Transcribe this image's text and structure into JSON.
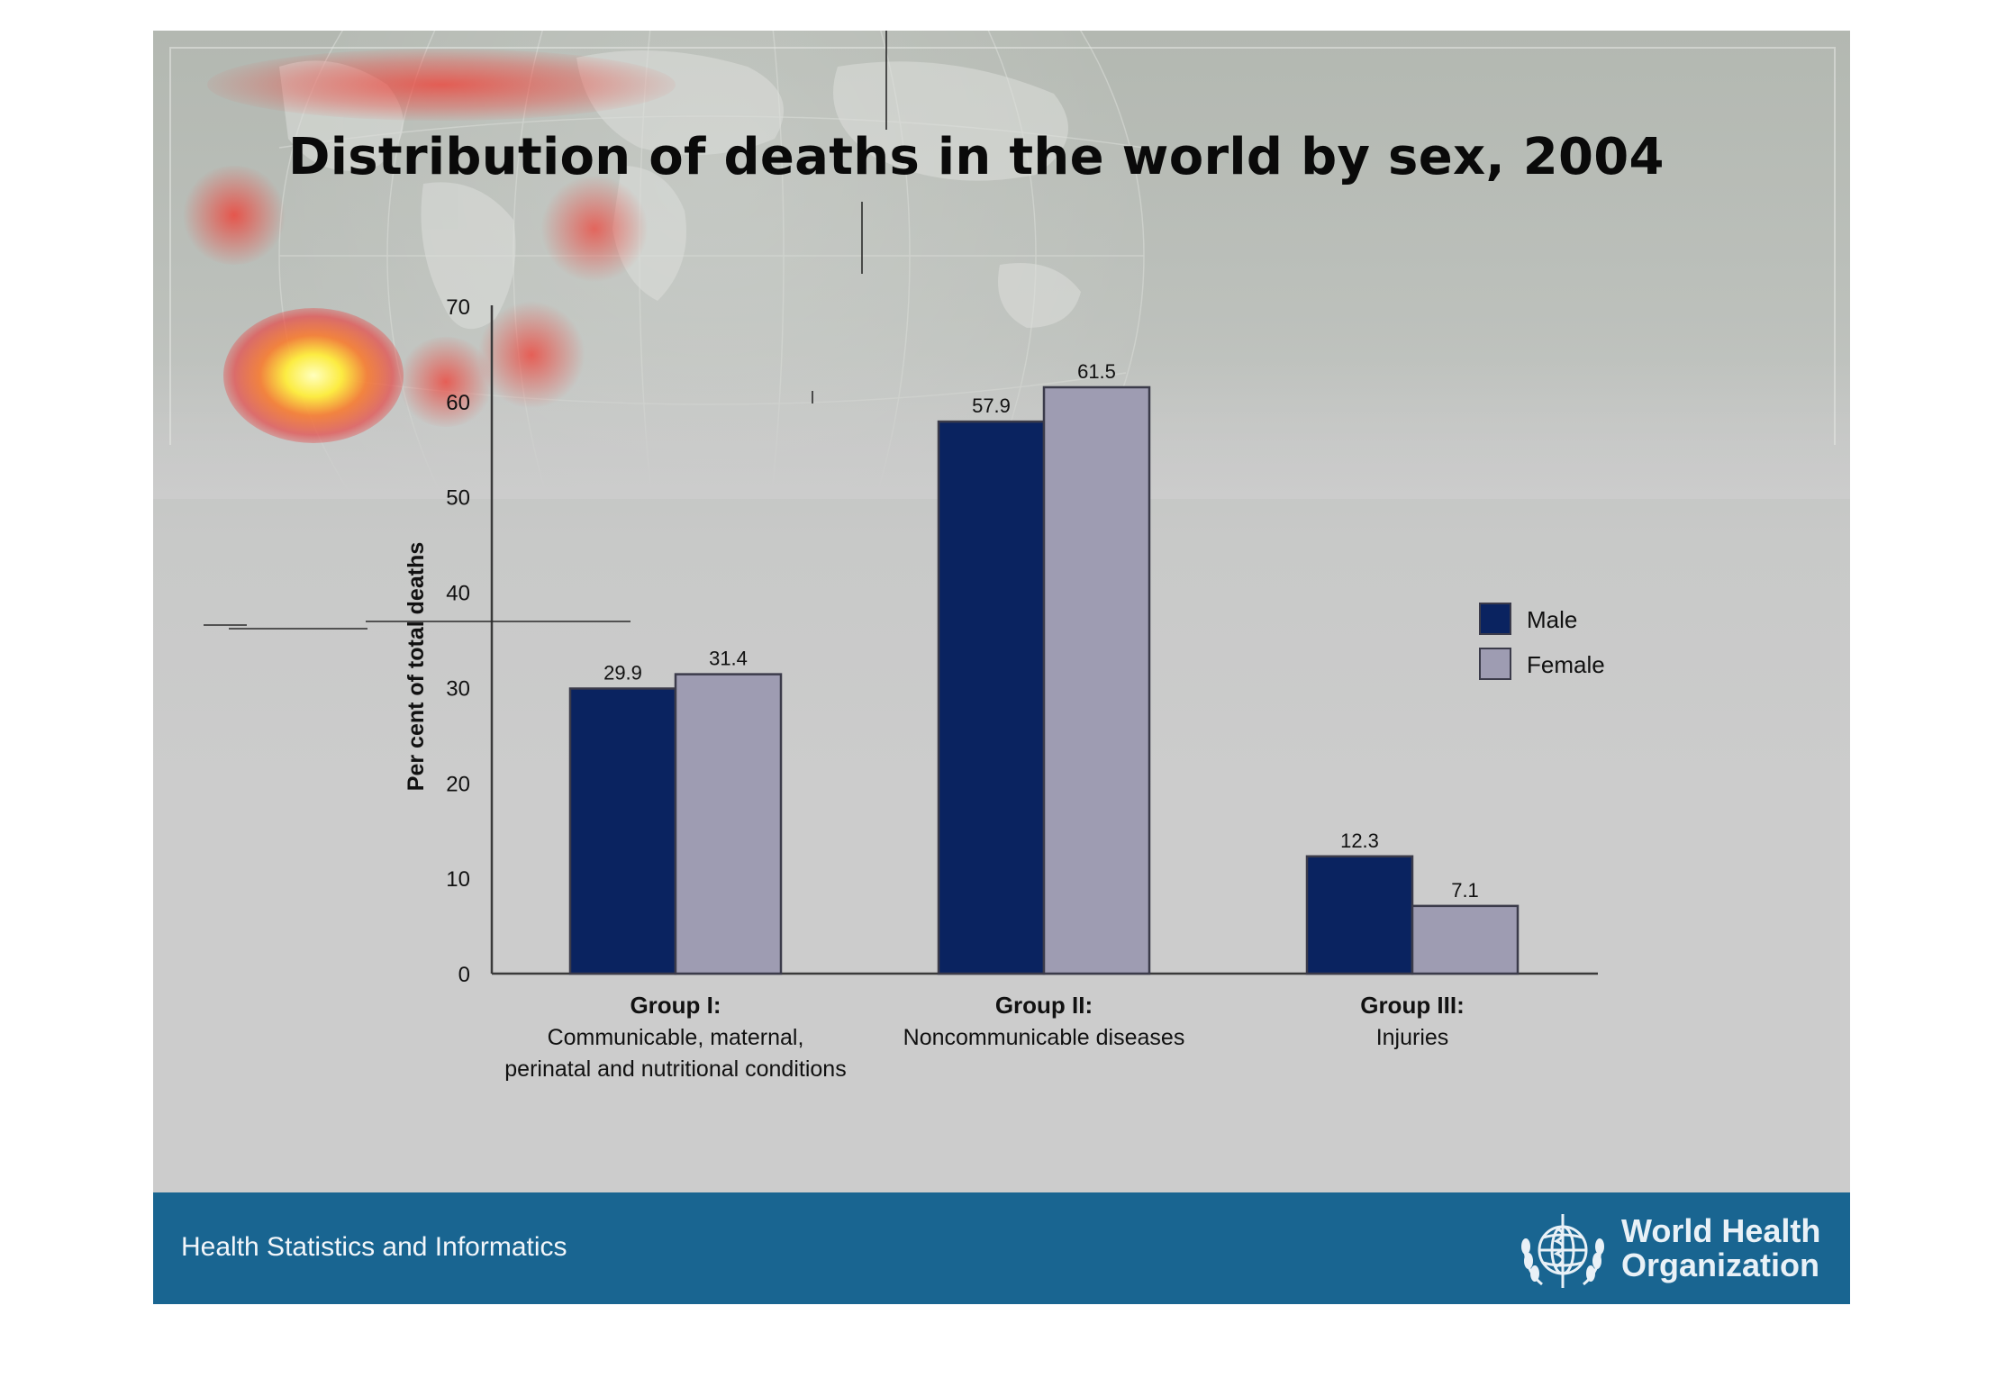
{
  "slide": {
    "title": "Distribution of deaths in the world by sex, 2004",
    "footer_text": "Health Statistics and Informatics",
    "logo_text": "World Health\nOrganization",
    "colors": {
      "footer": "#196591",
      "male": "#0a2360",
      "female": "#9e9cb2"
    }
  },
  "chart_data": {
    "type": "bar",
    "title": "Distribution of deaths in the world by sex, 2004",
    "ylabel": "Per cent of total deaths",
    "xlabel": "",
    "ylim": [
      0,
      70
    ],
    "yticks": [
      0,
      10,
      20,
      30,
      40,
      50,
      60,
      70
    ],
    "categories": [
      {
        "name": "Group I:",
        "description": [
          "Communicable, maternal,",
          "perinatal and nutritional conditions"
        ]
      },
      {
        "name": "Group II:",
        "description": [
          "Noncommunicable diseases"
        ]
      },
      {
        "name": "Group III:",
        "description": [
          "Injuries"
        ]
      }
    ],
    "series": [
      {
        "name": "Male",
        "color": "#0a2360",
        "values": [
          29.9,
          57.9,
          12.3
        ]
      },
      {
        "name": "Female",
        "color": "#9e9cb2",
        "values": [
          31.4,
          61.5,
          7.1
        ]
      }
    ],
    "legend": "right",
    "grid": false
  }
}
